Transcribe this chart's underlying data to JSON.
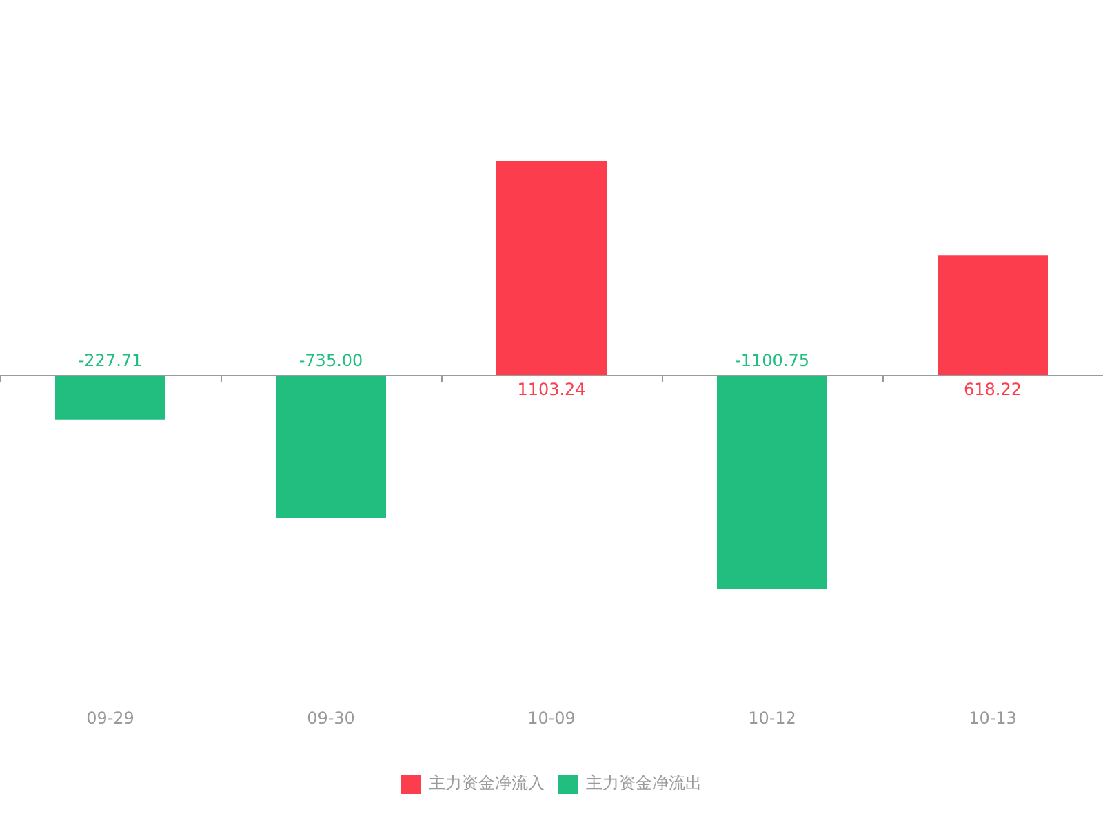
{
  "chart_data": {
    "type": "bar",
    "categories": [
      "09-29",
      "09-30",
      "10-09",
      "10-12",
      "10-13"
    ],
    "series": [
      {
        "name": "主力资金净流入",
        "color": "#fc3d4e",
        "values": [
          null,
          null,
          1103.24,
          null,
          618.22
        ],
        "value_labels": [
          null,
          null,
          "1103.24",
          null,
          "618.22"
        ]
      },
      {
        "name": "主力资金净流出",
        "color": "#21be80",
        "values": [
          -227.71,
          -735.0,
          null,
          -1100.75,
          null
        ],
        "value_labels": [
          "-227.71",
          "-735.00",
          null,
          "-1100.75",
          null
        ]
      }
    ],
    "legend": "bottom"
  }
}
